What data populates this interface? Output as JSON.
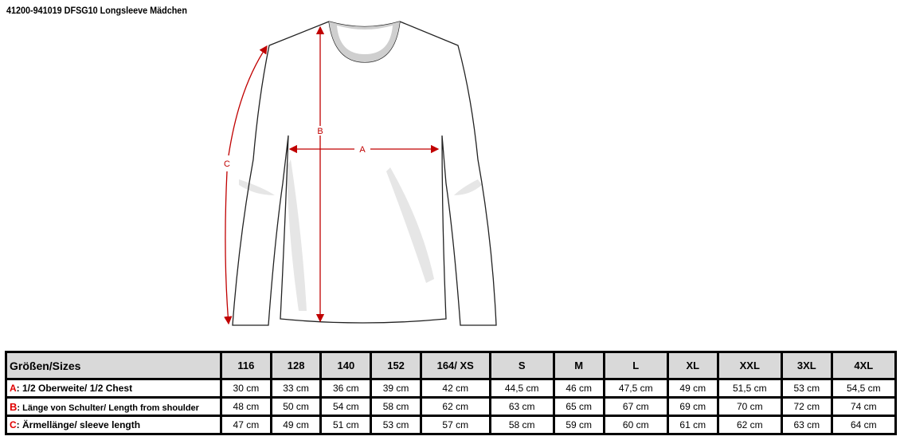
{
  "title": "41200-941019 DFSG10 Longsleeve Mädchen",
  "diagram": {
    "labels": {
      "a": "A",
      "b": "B",
      "c": "C"
    },
    "arrow_color": "#c00000"
  },
  "table": {
    "header_label": "Größen/Sizes",
    "sizes": [
      "116",
      "128",
      "140",
      "152",
      "164/ XS",
      "S",
      "M",
      "L",
      "XL",
      "XXL",
      "3XL",
      "4XL"
    ],
    "rows": [
      {
        "letter": "A",
        "label": ": 1/2 Oberweite/  1/2 Chest",
        "values": [
          "30 cm",
          "33 cm",
          "36 cm",
          "39 cm",
          "42 cm",
          "44,5 cm",
          "46 cm",
          "47,5 cm",
          "49 cm",
          "51,5 cm",
          "53 cm",
          "54,5 cm"
        ]
      },
      {
        "letter": "B",
        "label": ": Länge von Schulter/ Length from shoulder",
        "values": [
          "48 cm",
          "50 cm",
          "54 cm",
          "58 cm",
          "62 cm",
          "63 cm",
          "65 cm",
          "67 cm",
          "69 cm",
          "70 cm",
          "72 cm",
          "74 cm"
        ]
      },
      {
        "letter": "C",
        "label": ": Ärmellänge/ sleeve length",
        "values": [
          "47 cm",
          "49 cm",
          "51 cm",
          "53 cm",
          "57 cm",
          "58 cm",
          "59 cm",
          "60 cm",
          "61 cm",
          "62 cm",
          "63 cm",
          "64 cm"
        ]
      }
    ]
  }
}
